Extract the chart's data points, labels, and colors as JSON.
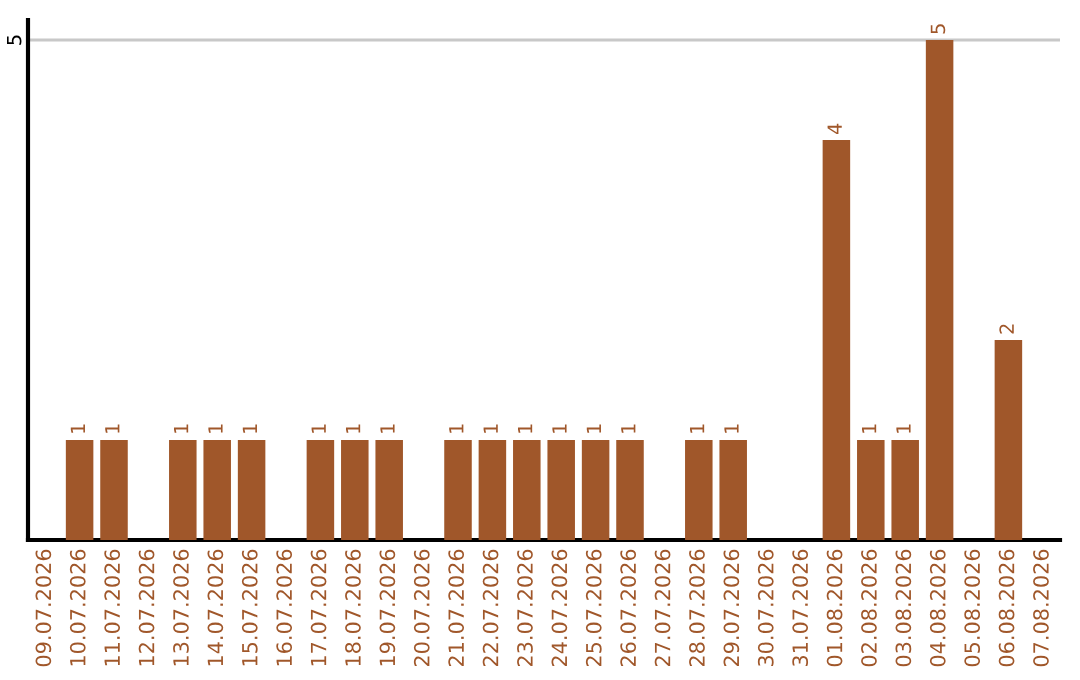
{
  "chart_data": {
    "type": "bar",
    "categories": [
      "09.07.2026",
      "10.07.2026",
      "11.07.2026",
      "12.07.2026",
      "13.07.2026",
      "14.07.2026",
      "15.07.2026",
      "16.07.2026",
      "17.07.2026",
      "18.07.2026",
      "19.07.2026",
      "20.07.2026",
      "21.07.2026",
      "22.07.2026",
      "23.07.2026",
      "24.07.2026",
      "25.07.2026",
      "26.07.2026",
      "27.07.2026",
      "28.07.2026",
      "29.07.2026",
      "30.07.2026",
      "31.07.2026",
      "01.08.2026",
      "02.08.2026",
      "03.08.2026",
      "04.08.2026",
      "05.08.2026",
      "06.08.2026",
      "07.08.2026"
    ],
    "values": [
      null,
      1,
      1,
      null,
      1,
      1,
      1,
      null,
      1,
      1,
      1,
      null,
      1,
      1,
      1,
      1,
      1,
      1,
      null,
      1,
      1,
      null,
      null,
      4,
      1,
      1,
      5,
      null,
      2,
      null
    ],
    "color": "#a0572a",
    "ylim": [
      0,
      5.2
    ],
    "yticks": [
      5
    ],
    "grid": "y",
    "data_labels": true
  }
}
